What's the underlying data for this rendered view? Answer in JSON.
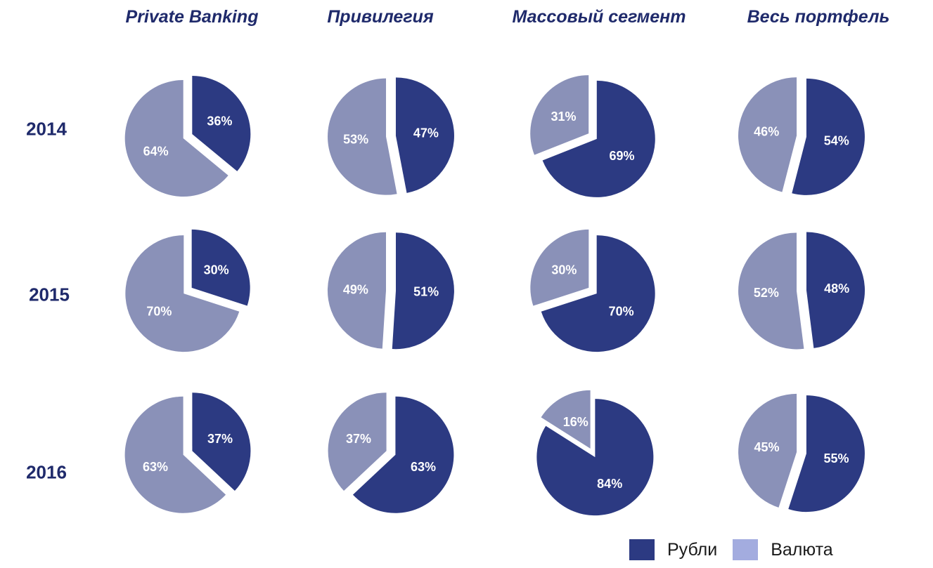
{
  "colors": {
    "rubles": "#2c3a82",
    "currency": "#8a91b8",
    "legend_currency": "#a3acdf",
    "pie_label": "#ffffff"
  },
  "legend": {
    "rubles": "Рубли",
    "currency": "Валюта"
  },
  "chart_data": {
    "type": "pie",
    "columns": [
      "Private Banking",
      "Привилегия",
      "Массовый сегмент",
      "Весь портфель"
    ],
    "rows": [
      "2014",
      "2015",
      "2016"
    ],
    "series_legend": [
      "Рубли",
      "Валюта"
    ],
    "pies": [
      [
        {
          "rubles": 36,
          "currency": 64,
          "rubles_label": "36%",
          "currency_label": "64%"
        },
        {
          "rubles": 47,
          "currency": 53,
          "rubles_label": "47%",
          "currency_label": "53%"
        },
        {
          "rubles": 69,
          "currency": 31,
          "rubles_label": "69%",
          "currency_label": "31%"
        },
        {
          "rubles": 54,
          "currency": 46,
          "rubles_label": "54%",
          "currency_label": "46%"
        }
      ],
      [
        {
          "rubles": 30,
          "currency": 70,
          "rubles_label": "30%",
          "currency_label": "70%"
        },
        {
          "rubles": 51,
          "currency": 49,
          "rubles_label": "51%",
          "currency_label": "49%"
        },
        {
          "rubles": 70,
          "currency": 30,
          "rubles_label": "70%",
          "currency_label": "30%"
        },
        {
          "rubles": 48,
          "currency": 52,
          "rubles_label": "48%",
          "currency_label": "52%"
        }
      ],
      [
        {
          "rubles": 37,
          "currency": 63,
          "rubles_label": "37%",
          "currency_label": "63%"
        },
        {
          "rubles": 63,
          "currency": 37,
          "rubles_label": "63%",
          "currency_label": "37%"
        },
        {
          "rubles": 84,
          "currency": 16,
          "rubles_label": "84%",
          "currency_label": "16%"
        },
        {
          "rubles": 55,
          "currency": 45,
          "rubles_label": "55%",
          "currency_label": "45%"
        }
      ]
    ],
    "legend_position": "bottom-right"
  }
}
